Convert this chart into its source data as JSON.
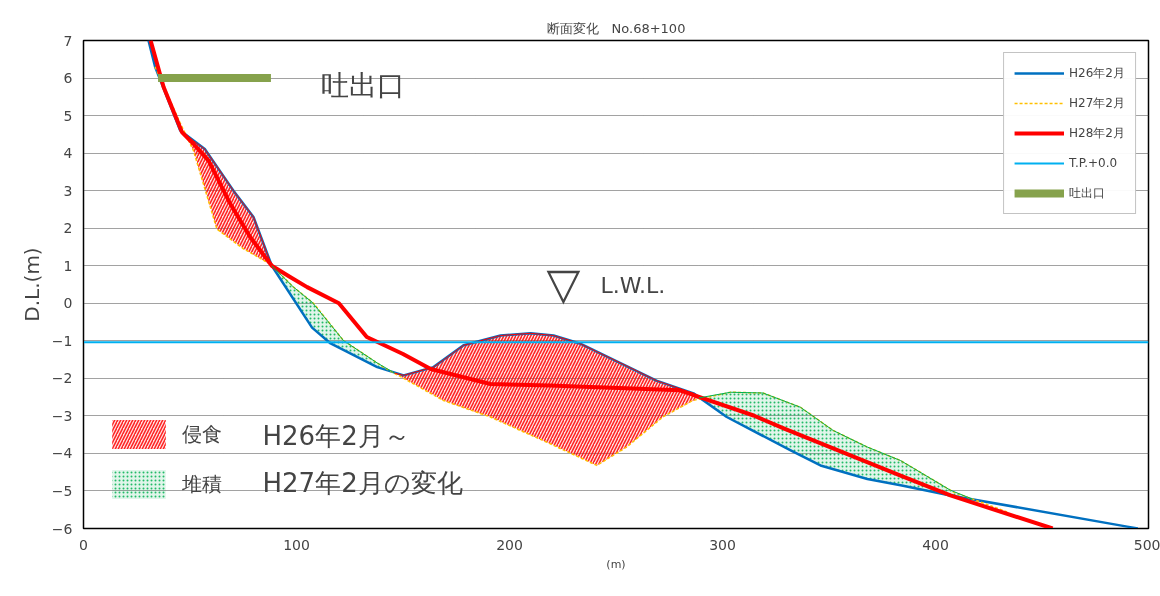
{
  "chart_data": {
    "type": "line",
    "title": "断面変化　No.68+100",
    "xlabel": "(m)",
    "ylabel": "D.L.(m)",
    "xlim": [
      0,
      500
    ],
    "ylim": [
      -6,
      7
    ],
    "xticks": [
      0,
      100,
      200,
      300,
      400,
      500
    ],
    "yticks": [
      -6,
      -5,
      -4,
      -3,
      -2,
      -1,
      0,
      1,
      2,
      3,
      4,
      5,
      6,
      7
    ],
    "grid": "y",
    "legend": "top right",
    "series": [
      {
        "name": "H26年2月",
        "color": "#0070c0",
        "line_style": "solid",
        "x": [
          30.5,
          33.6,
          45.4,
          57.1,
          70.4,
          79.8,
          88.4,
          107.3,
          116,
          137.9,
          150.3,
          164.3,
          178.4,
          195.8,
          209.9,
          220.7,
          233,
          269,
          286.4,
          302,
          332,
          346,
          368,
          383.6,
          407,
          490,
          495
        ],
        "values": [
          7,
          6.3,
          4.6,
          4.1,
          3.0,
          2.3,
          1.0,
          -0.65,
          -1.07,
          -1.7,
          -1.92,
          -1.7,
          -1.12,
          -0.86,
          -0.8,
          -0.86,
          -1.07,
          -2.06,
          -2.4,
          -3.03,
          -3.92,
          -4.32,
          -4.68,
          -4.85,
          -5.12,
          -5.95,
          -6
        ]
      },
      {
        "name": "H27年2月",
        "color": "#ffc000",
        "line_style": "dashed",
        "x": [
          33.6,
          45.4,
          51.6,
          62.6,
          75.1,
          87.6,
          98.6,
          108,
          122,
          140.8,
          169,
          191,
          219,
          241,
          255,
          272,
          286,
          303.8,
          319,
          336.6,
          352,
          368,
          383.6,
          408.5,
          433.6
        ],
        "values": [
          6.3,
          4.8,
          4.07,
          1.98,
          1.45,
          1.05,
          0.43,
          0.0,
          -0.99,
          -1.7,
          -2.59,
          -3.03,
          -3.74,
          -4.32,
          -3.83,
          -3.03,
          -2.59,
          -2.37,
          -2.39,
          -2.77,
          -3.39,
          -3.83,
          -4.19,
          -5.03,
          -5.56
        ]
      },
      {
        "name": "H28年2月",
        "color": "#ff0000",
        "line_style": "solid",
        "x": [
          31.5,
          37.6,
          46.2,
          51.6,
          58.7,
          68.9,
          78.3,
          88.4,
          97,
          105,
          119.9,
          133,
          150,
          163,
          191,
          219,
          280,
          314.6,
          329,
          383.6,
          407,
          455
        ],
        "values": [
          7,
          5.76,
          4.56,
          4.25,
          3.8,
          2.65,
          1.76,
          1.0,
          0.7,
          0.43,
          0.0,
          -0.9,
          -1.35,
          -1.75,
          -2.15,
          -2.19,
          -2.32,
          -2.99,
          -3.34,
          -4.59,
          -5.12,
          -6
        ]
      },
      {
        "name": "吐出口",
        "color": "#86a24c",
        "line_style": "solid",
        "x": [
          35,
          88
        ],
        "values": [
          6,
          6
        ]
      },
      {
        "name": "侵食",
        "type": "line",
        "color": "#ff0000",
        "x": [
          48,
          51.6,
          57.1,
          62.6,
          70.4,
          75.1,
          79.8,
          88.4
        ],
        "values": [
          4.49,
          4.33,
          4.1,
          3.65,
          3.0,
          2.65,
          2.3,
          1.0
        ],
        "upper": [
          4.49,
          4.33,
          4.1,
          3.65,
          3.0,
          2.65,
          2.3,
          1.0
        ],
        "lower": [
          4.49,
          4.07,
          3.03,
          1.98,
          1.65,
          1.45,
          1.3,
          1.0
        ]
      },
      {
        "type": "line",
        "color": "#ff0000",
        "x": [
          146,
          150.3,
          164.3,
          169,
          178.4,
          191,
          195.8,
          209.9,
          219,
          220.7,
          233,
          241,
          255,
          269,
          272,
          286.4,
          289
        ],
        "values": [
          -1.86,
          -1.92,
          -1.7,
          -1.51,
          -1.12,
          -0.93,
          -0.86,
          -0.8,
          -0.85,
          -0.86,
          -1.07,
          -1.29,
          -1.67,
          -2.06,
          -2.12,
          -2.4,
          -2.52
        ],
        "upper": [
          -1.86,
          -1.92,
          -1.7,
          -1.51,
          -1.12,
          -0.93,
          -0.86,
          -0.8,
          -0.85,
          -0.86,
          -1.07,
          -1.29,
          -1.67,
          -2.06,
          -2.12,
          -2.4,
          -2.52
        ],
        "lower": [
          -1.86,
          -2.0,
          -2.44,
          -2.59,
          -2.78,
          -3.03,
          -3.15,
          -3.51,
          -3.74,
          -3.78,
          -4.1,
          -4.32,
          -3.83,
          -3.17,
          -3.03,
          -2.59,
          -2.52
        ]
      },
      {
        "name": "堆積",
        "type": "line",
        "color": "#00b050",
        "x": [
          88.4,
          98.6,
          107.3,
          116,
          122,
          137.9,
          146
        ],
        "values": [
          1.0,
          0.43,
          0.03,
          -0.57,
          -0.99,
          -1.59,
          -1.86
        ],
        "upper": [
          1.0,
          0.43,
          0.03,
          -0.57,
          -0.99,
          -1.59,
          -1.86
        ],
        "lower": [
          1.0,
          0.11,
          -0.65,
          -1.07,
          -1.24,
          -1.7,
          -1.86
        ]
      },
      {
        "type": "line",
        "color": "#00b050",
        "x": [
          289,
          303.8,
          319,
          332,
          336.6,
          346,
          352,
          368,
          383.6,
          407,
          417.5
        ],
        "values": [
          -2.52,
          -2.37,
          -2.39,
          -2.67,
          -2.77,
          -3.15,
          -3.39,
          -3.83,
          -4.19,
          -4.98,
          -5.22
        ],
        "upper": [
          -2.52,
          -2.37,
          -2.39,
          -2.67,
          -2.77,
          -3.15,
          -3.39,
          -3.83,
          -4.19,
          -4.98,
          -5.22
        ],
        "lower": [
          -2.52,
          -3.08,
          -3.53,
          -3.92,
          -4.05,
          -4.32,
          -4.42,
          -4.68,
          -4.85,
          -5.12,
          -5.22
        ]
      }
    ],
    "ref_lines": [
      {
        "axis": "y",
        "value": -1.04,
        "label": "T.P.+0.0",
        "color": "#00b0f0"
      }
    ],
    "annotations": [
      "吐出口",
      "▽",
      "L.W.L.",
      "H26年2月～",
      "H27年2月の変化"
    ]
  }
}
